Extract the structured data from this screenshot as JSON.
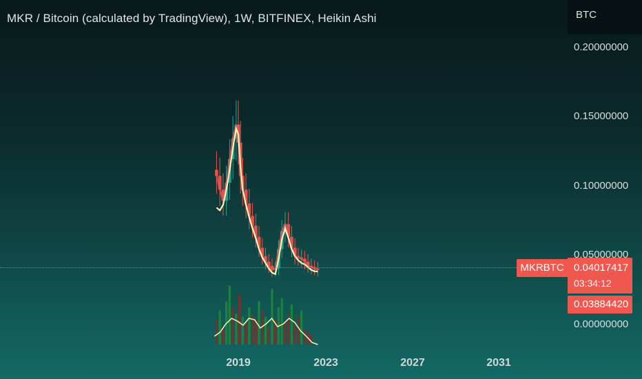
{
  "header": {
    "title": "MKR / Bitcoin (calculated by TradingView), 1W, BITFINEX, Heikin Ashi",
    "currency": "BTC"
  },
  "colors": {
    "up": "#26a69a",
    "down": "#ef5350",
    "ma_line": "#fff5b5",
    "badge": "#f0584f"
  },
  "price_badge": {
    "symbol": "MKRBTC",
    "last_price": "0.04017417",
    "countdown": "03:34:12",
    "ma_value": "0.03884420"
  },
  "chart_data": {
    "type": "line",
    "title": "MKR / Bitcoin (calculated by TradingView), 1W, BITFINEX, Heikin Ashi",
    "xlabel": "",
    "ylabel": "",
    "x_ticks": [
      "2019",
      "2023",
      "2027",
      "2031"
    ],
    "y_ticks": [
      "0.20000000",
      "0.15000000",
      "0.10000000",
      "0.05000000",
      "0.00000000"
    ],
    "ylim": [
      -0.012,
      0.23
    ],
    "xlim": [
      2017.0,
      2034.0
    ],
    "grid": false,
    "series": [
      {
        "kind": "heikin-ashi-close",
        "x": [
          2018.0,
          2018.15,
          2018.3,
          2018.45,
          2018.6,
          2018.75,
          2018.9,
          2019.0,
          2019.1,
          2019.2,
          2019.35,
          2019.5,
          2019.65,
          2019.8,
          2019.95,
          2020.1,
          2020.25,
          2020.4,
          2020.55,
          2020.7,
          2020.85,
          2021.0,
          2021.15,
          2021.3,
          2021.45,
          2021.6,
          2021.75,
          2021.9,
          2022.05,
          2022.2,
          2022.35,
          2022.5,
          2022.65
        ],
        "values": [
          0.108,
          0.098,
          0.09,
          0.103,
          0.12,
          0.135,
          0.145,
          0.132,
          0.108,
          0.098,
          0.088,
          0.079,
          0.072,
          0.064,
          0.056,
          0.05,
          0.046,
          0.043,
          0.04,
          0.041,
          0.055,
          0.068,
          0.073,
          0.064,
          0.056,
          0.05,
          0.049,
          0.048,
          0.046,
          0.043,
          0.042,
          0.041,
          0.04
        ]
      },
      {
        "kind": "moving-average",
        "x": [
          2018.0,
          2018.15,
          2018.3,
          2018.45,
          2018.6,
          2018.75,
          2018.9,
          2019.0,
          2019.1,
          2019.2,
          2019.35,
          2019.5,
          2019.65,
          2019.8,
          2019.95,
          2020.1,
          2020.25,
          2020.4,
          2020.55,
          2020.7,
          2020.85,
          2021.0,
          2021.15,
          2021.3,
          2021.45,
          2021.6,
          2021.75,
          2021.9,
          2022.05,
          2022.2,
          2022.35,
          2022.5,
          2022.65
        ],
        "values": [
          0.085,
          0.083,
          0.087,
          0.098,
          0.112,
          0.128,
          0.142,
          0.138,
          0.115,
          0.098,
          0.087,
          0.078,
          0.07,
          0.063,
          0.055,
          0.049,
          0.045,
          0.041,
          0.038,
          0.037,
          0.048,
          0.062,
          0.07,
          0.063,
          0.055,
          0.05,
          0.047,
          0.045,
          0.044,
          0.042,
          0.04,
          0.039,
          0.0388
        ]
      }
    ],
    "volume_bars": {
      "x": [
        2018.0,
        2018.15,
        2018.3,
        2018.45,
        2018.6,
        2018.75,
        2018.9,
        2019.05,
        2019.2,
        2019.35,
        2019.5,
        2019.65,
        2019.8,
        2019.95,
        2020.1,
        2020.25,
        2020.4,
        2020.55,
        2020.7,
        2020.85,
        2021.0,
        2021.15,
        2021.3,
        2021.45,
        2021.6,
        2021.75,
        2021.9,
        2022.05,
        2022.2,
        2022.35
      ],
      "relative_heights": [
        0.4,
        0.55,
        0.3,
        0.7,
        0.95,
        0.6,
        0.5,
        0.8,
        0.45,
        0.35,
        0.6,
        0.5,
        0.4,
        0.7,
        0.55,
        0.45,
        0.3,
        0.9,
        0.4,
        0.6,
        0.75,
        0.35,
        0.5,
        0.65,
        0.3,
        0.45,
        0.55,
        0.25,
        0.2,
        0.15
      ],
      "up": [
        false,
        true,
        false,
        true,
        true,
        false,
        true,
        false,
        true,
        false,
        true,
        false,
        false,
        true,
        false,
        true,
        false,
        true,
        false,
        true,
        true,
        false,
        false,
        true,
        false,
        false,
        true,
        false,
        false,
        false
      ]
    },
    "volume_ma": [
      0.12,
      0.18,
      0.3,
      0.38,
      0.34,
      0.28,
      0.38,
      0.36,
      0.24,
      0.3,
      0.38,
      0.26,
      0.3,
      0.38,
      0.32,
      0.2,
      0.12,
      0.03,
      0.0
    ]
  }
}
